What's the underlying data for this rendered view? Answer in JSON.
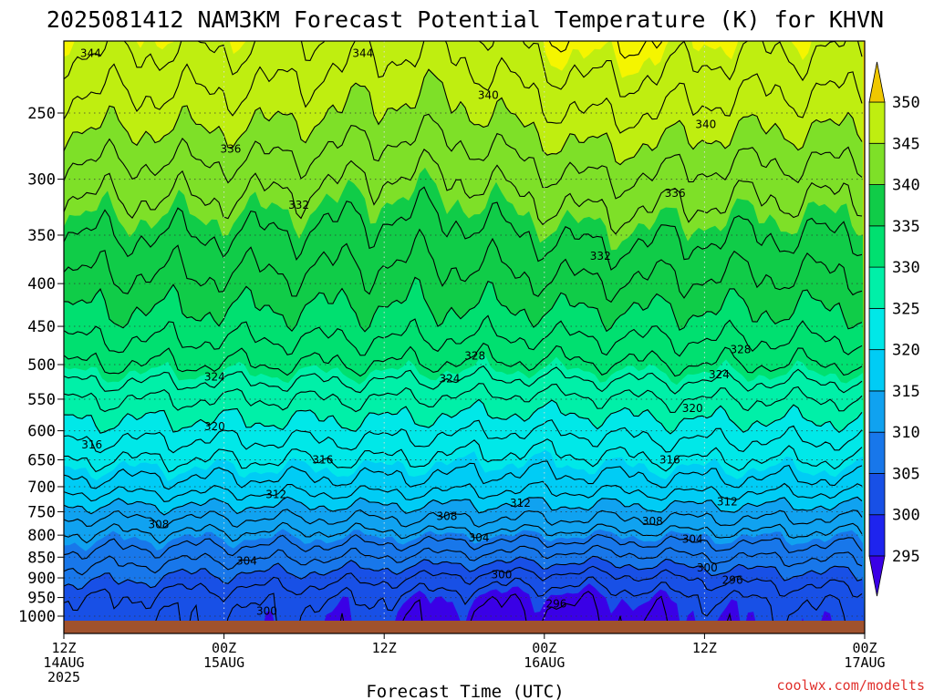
{
  "title": "2025081412 NAM3KM Forecast Potential Temperature (K) for KHVN",
  "credit": "coolwx.com/modelts",
  "colors": {
    "ground": "#a0522d",
    "contour": "#000000",
    "credit": "#e0302c"
  },
  "chart_data": {
    "type": "heatmap",
    "title": "2025081412 NAM3KM Forecast Potential Temperature (K) for KHVN",
    "xlabel": "Forecast Time (UTC)",
    "ylabel": "",
    "x_range_hours": [
      0,
      60
    ],
    "y_axis": {
      "type": "log-pressure",
      "unit": "hPa",
      "range": [
        1000,
        200
      ],
      "inverted": true
    },
    "y_ticks": [
      250,
      300,
      350,
      400,
      450,
      500,
      550,
      600,
      650,
      700,
      750,
      800,
      850,
      900,
      950,
      1000
    ],
    "x_ticks": [
      {
        "hour": 0,
        "line1": "12Z",
        "line2": "14AUG",
        "line3": "2025"
      },
      {
        "hour": 12,
        "line1": "00Z",
        "line2": "15AUG",
        "line3": ""
      },
      {
        "hour": 24,
        "line1": "12Z",
        "line2": "",
        "line3": ""
      },
      {
        "hour": 36,
        "line1": "00Z",
        "line2": "16AUG",
        "line3": ""
      },
      {
        "hour": 48,
        "line1": "12Z",
        "line2": "",
        "line3": ""
      },
      {
        "hour": 60,
        "line1": "00Z",
        "line2": "17AUG",
        "line3": ""
      }
    ],
    "grid": true,
    "colorbar": {
      "placement": "right",
      "levels": [
        295,
        300,
        305,
        310,
        315,
        320,
        325,
        330,
        335,
        340,
        345,
        350
      ],
      "colors": [
        "#3a00e6",
        "#1e24ee",
        "#1850e6",
        "#1877ea",
        "#10a2f0",
        "#00ccf5",
        "#00e8e8",
        "#00f0a8",
        "#00e070",
        "#10cc48",
        "#7ee028",
        "#bfee10",
        "#f5f500",
        "#f0c800"
      ]
    },
    "contour_interval_K": 2,
    "contour_labels": [
      {
        "hour": 2,
        "p": 212,
        "text": "344"
      },
      {
        "hour": 22.4,
        "p": 212,
        "text": "344"
      },
      {
        "hour": 31.8,
        "p": 238,
        "text": "340"
      },
      {
        "hour": 48.1,
        "p": 258,
        "text": "340"
      },
      {
        "hour": 12.5,
        "p": 276,
        "text": "336"
      },
      {
        "hour": 45.8,
        "p": 312,
        "text": "336"
      },
      {
        "hour": 17.6,
        "p": 322,
        "text": "332"
      },
      {
        "hour": 40.2,
        "p": 371,
        "text": "332"
      },
      {
        "hour": 30.8,
        "p": 488,
        "text": "328"
      },
      {
        "hour": 50.7,
        "p": 480,
        "text": "328"
      },
      {
        "hour": 11.3,
        "p": 517,
        "text": "324"
      },
      {
        "hour": 28.9,
        "p": 520,
        "text": "324"
      },
      {
        "hour": 49.1,
        "p": 514,
        "text": "324"
      },
      {
        "hour": 11.3,
        "p": 593,
        "text": "320"
      },
      {
        "hour": 47.1,
        "p": 564,
        "text": "320"
      },
      {
        "hour": 2.1,
        "p": 624,
        "text": "316"
      },
      {
        "hour": 19.4,
        "p": 650,
        "text": "316"
      },
      {
        "hour": 45.4,
        "p": 650,
        "text": "316"
      },
      {
        "hour": 15.9,
        "p": 715,
        "text": "312"
      },
      {
        "hour": 34.2,
        "p": 732,
        "text": "312"
      },
      {
        "hour": 49.7,
        "p": 730,
        "text": "312"
      },
      {
        "hour": 7.1,
        "p": 777,
        "text": "308"
      },
      {
        "hour": 28.7,
        "p": 760,
        "text": "308"
      },
      {
        "hour": 44.1,
        "p": 770,
        "text": "308"
      },
      {
        "hour": 31.1,
        "p": 806,
        "text": "304"
      },
      {
        "hour": 47.1,
        "p": 809,
        "text": "304"
      },
      {
        "hour": 13.7,
        "p": 859,
        "text": "304"
      },
      {
        "hour": 32.8,
        "p": 892,
        "text": "300"
      },
      {
        "hour": 48.2,
        "p": 875,
        "text": "300"
      },
      {
        "hour": 50.1,
        "p": 906,
        "text": "296"
      },
      {
        "hour": 36.9,
        "p": 967,
        "text": "296"
      },
      {
        "hour": 15.2,
        "p": 986,
        "text": "300"
      }
    ]
  }
}
